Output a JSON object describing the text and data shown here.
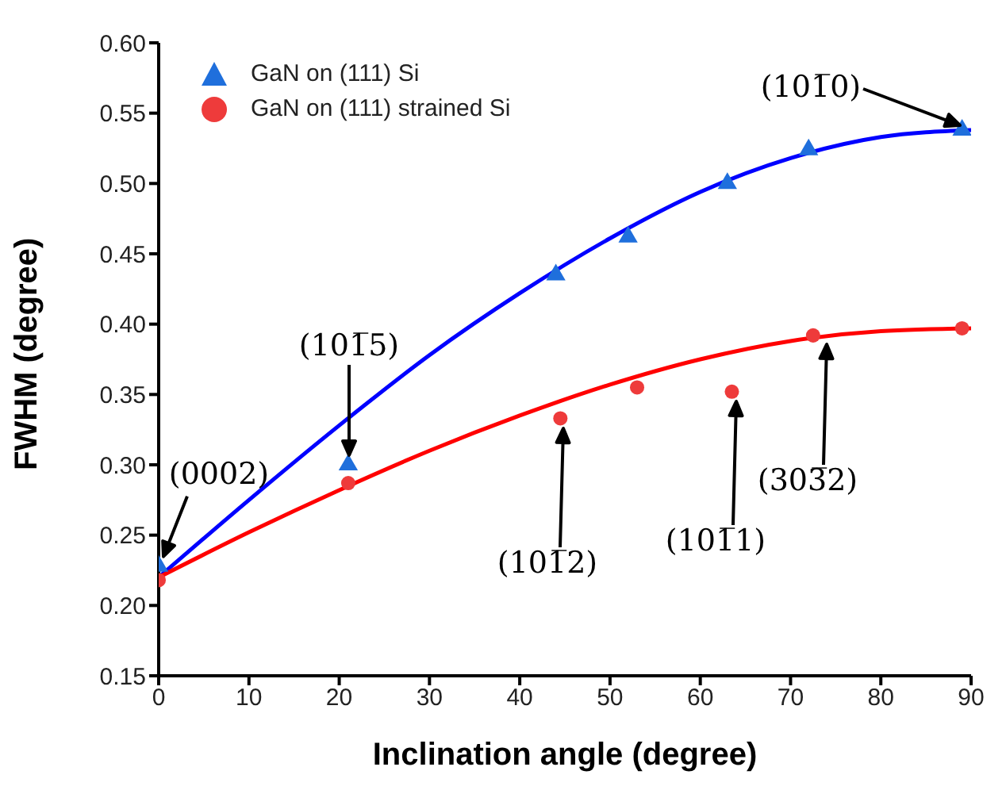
{
  "chart_data": {
    "type": "scatter",
    "xlabel": "Inclination angle (degree)",
    "ylabel": "FWHM (degree)",
    "xlim": [
      0,
      90
    ],
    "xticks": [
      0,
      10,
      20,
      30,
      40,
      50,
      60,
      70,
      80,
      90
    ],
    "ylim": [
      0.15,
      0.6
    ],
    "yticks": [
      0.15,
      {
        "value": 0.2,
        "label": "0.20"
      },
      0.25,
      {
        "value": 0.3,
        "label": "0.30"
      },
      0.35,
      {
        "value": 0.4,
        "label": "0.40"
      },
      0.45,
      {
        "value": 0.5,
        "label": "0.50"
      },
      0.55,
      {
        "value": 0.6,
        "label": "0.60"
      }
    ],
    "grid": false,
    "legend": "top left",
    "series": [
      {
        "name": "GaN on (111) Si",
        "marker": "triangle",
        "color": "#1f6fdc",
        "x": [
          0,
          21,
          44,
          52,
          63,
          72,
          89
        ],
        "values": [
          0.228,
          0.3,
          0.435,
          0.462,
          0.5,
          0.524,
          0.538
        ]
      },
      {
        "name": "GaN on (111) strained Si",
        "marker": "circle",
        "color": "#ee3b3b",
        "x": [
          0,
          21,
          44.5,
          53,
          63.5,
          72.5,
          89
        ],
        "values": [
          0.218,
          0.287,
          0.333,
          0.355,
          0.352,
          0.392,
          0.397
        ]
      },
      {
        "type": "line",
        "marker": "none",
        "color": "#0000ff",
        "x": [
          0,
          10,
          20,
          30,
          40,
          50,
          60,
          70,
          80,
          90
        ],
        "values": [
          0.22,
          0.275,
          0.328,
          0.378,
          0.422,
          0.461,
          0.494,
          0.518,
          0.533,
          0.538
        ]
      },
      {
        "type": "line",
        "marker": "none",
        "color": "#ff0000",
        "x": [
          0,
          10,
          20,
          30,
          40,
          50,
          60,
          70,
          80,
          90
        ],
        "values": [
          0.22,
          0.252,
          0.282,
          0.31,
          0.335,
          0.357,
          0.375,
          0.388,
          0.395,
          0.397
        ]
      }
    ],
    "annotations": [
      {
        "text": "(0002)",
        "x": 0,
        "y": 0.228
      },
      "(101̅5)",
      "(101̅2)",
      "(101̅1)",
      "(303̅2)",
      "(101̅0)"
    ]
  }
}
